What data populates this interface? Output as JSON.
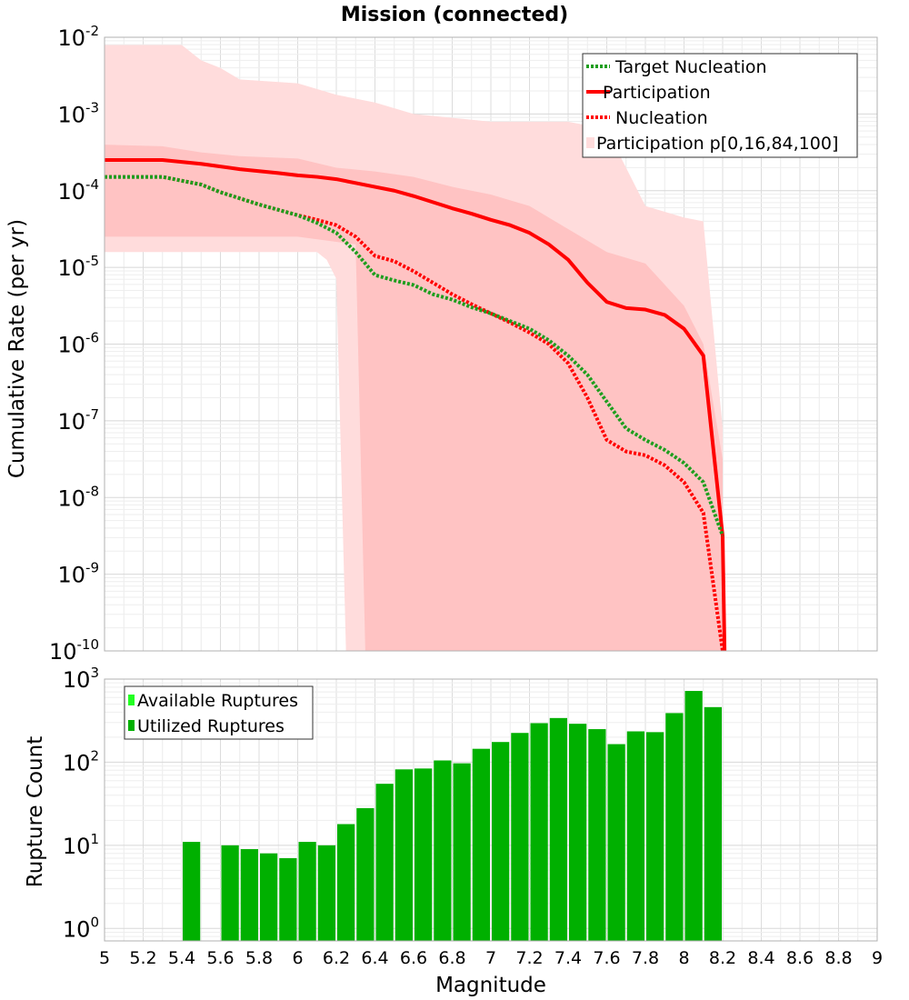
{
  "title": "Mission (connected)",
  "colors": {
    "band_outer": "#ffdcdc",
    "band_inner": "#ffc3c3",
    "participation": "#ff0000",
    "nucleation": "#ff0000",
    "target": "#1e9e1e",
    "bar_utilized": "#00b000",
    "bar_available": "#22ff22",
    "grid": "#e4e4e4",
    "axis": "#b0b0b0"
  },
  "chart_data": [
    {
      "id": "rate",
      "type": "line",
      "xlabel": "",
      "ylabel": "Cumulative Rate (per yr)",
      "xlim": [
        5,
        9
      ],
      "ylim_exp": [
        -10,
        -2
      ],
      "yscale": "log",
      "y_ticks": [
        {
          "base": "10",
          "exp": "-2",
          "value": -2
        },
        {
          "base": "10",
          "exp": "-3",
          "value": -3
        },
        {
          "base": "10",
          "exp": "-4",
          "value": -4
        },
        {
          "base": "10",
          "exp": "-5",
          "value": -5
        },
        {
          "base": "10",
          "exp": "-6",
          "value": -6
        },
        {
          "base": "10",
          "exp": "-7",
          "value": -7
        },
        {
          "base": "10",
          "exp": "-8",
          "value": -8
        },
        {
          "base": "10",
          "exp": "-9",
          "value": -9
        },
        {
          "base": "10",
          "exp": "-10",
          "value": -10
        }
      ],
      "legend": [
        {
          "label": "Target Nucleation",
          "style": "dotted",
          "color_key": "target"
        },
        {
          "label": "Participation",
          "style": "solid",
          "color_key": "participation"
        },
        {
          "label": "Nucleation",
          "style": "dotted",
          "color_key": "nucleation"
        },
        {
          "label": "Participation p[0,16,84,100]",
          "style": "patch",
          "color_key": "band_outer"
        }
      ],
      "legend_position": "top-right",
      "bands": [
        {
          "name": "p0-p100",
          "color_key": "band_outer",
          "upper": [
            [
              5.0,
              -2.1
            ],
            [
              5.4,
              -2.1
            ],
            [
              5.5,
              -2.3
            ],
            [
              5.6,
              -2.4
            ],
            [
              5.7,
              -2.55
            ],
            [
              6.0,
              -2.6
            ],
            [
              6.2,
              -2.75
            ],
            [
              6.4,
              -2.85
            ],
            [
              6.6,
              -3.0
            ],
            [
              6.8,
              -3.05
            ],
            [
              7.0,
              -3.1
            ],
            [
              7.2,
              -3.1
            ],
            [
              7.4,
              -3.1
            ],
            [
              7.6,
              -3.2
            ],
            [
              7.7,
              -3.7
            ],
            [
              7.8,
              -4.2
            ],
            [
              8.0,
              -4.35
            ],
            [
              8.1,
              -4.4
            ],
            [
              8.2,
              -7.1
            ],
            [
              8.2,
              -10
            ]
          ],
          "lower": [
            [
              5.0,
              -4.8
            ],
            [
              6.1,
              -4.8
            ],
            [
              6.15,
              -4.9
            ],
            [
              6.2,
              -5.15
            ],
            [
              6.25,
              -10
            ]
          ]
        },
        {
          "name": "p16-p84",
          "color_key": "band_inner",
          "upper": [
            [
              5.0,
              -3.4
            ],
            [
              5.3,
              -3.42
            ],
            [
              5.5,
              -3.5
            ],
            [
              5.7,
              -3.55
            ],
            [
              6.0,
              -3.58
            ],
            [
              6.2,
              -3.7
            ],
            [
              6.4,
              -3.75
            ],
            [
              6.6,
              -3.82
            ],
            [
              6.8,
              -3.95
            ],
            [
              7.0,
              -4.05
            ],
            [
              7.2,
              -4.2
            ],
            [
              7.4,
              -4.5
            ],
            [
              7.6,
              -4.8
            ],
            [
              7.8,
              -4.95
            ],
            [
              8.0,
              -5.5
            ],
            [
              8.1,
              -6.0
            ],
            [
              8.2,
              -7.5
            ],
            [
              8.2,
              -10
            ]
          ],
          "lower": [
            [
              5.0,
              -4.6
            ],
            [
              6.0,
              -4.6
            ],
            [
              6.3,
              -4.7
            ],
            [
              6.35,
              -10
            ]
          ]
        }
      ],
      "series": [
        {
          "name": "Participation",
          "color_key": "participation",
          "style": "solid",
          "points": [
            [
              5.0,
              -3.6
            ],
            [
              5.3,
              -3.6
            ],
            [
              5.5,
              -3.65
            ],
            [
              5.7,
              -3.72
            ],
            [
              5.9,
              -3.77
            ],
            [
              6.0,
              -3.8
            ],
            [
              6.1,
              -3.82
            ],
            [
              6.2,
              -3.85
            ],
            [
              6.3,
              -3.9
            ],
            [
              6.4,
              -3.95
            ],
            [
              6.5,
              -4.0
            ],
            [
              6.6,
              -4.07
            ],
            [
              6.7,
              -4.15
            ],
            [
              6.8,
              -4.23
            ],
            [
              6.9,
              -4.3
            ],
            [
              7.0,
              -4.38
            ],
            [
              7.1,
              -4.45
            ],
            [
              7.2,
              -4.55
            ],
            [
              7.3,
              -4.7
            ],
            [
              7.4,
              -4.9
            ],
            [
              7.5,
              -5.2
            ],
            [
              7.6,
              -5.45
            ],
            [
              7.7,
              -5.53
            ],
            [
              7.8,
              -5.55
            ],
            [
              7.9,
              -5.62
            ],
            [
              8.0,
              -5.8
            ],
            [
              8.1,
              -6.15
            ],
            [
              8.2,
              -8.5
            ],
            [
              8.21,
              -10
            ]
          ]
        },
        {
          "name": "Nucleation",
          "color_key": "nucleation",
          "style": "dotted",
          "points": [
            [
              5.0,
              -3.82
            ],
            [
              5.3,
              -3.82
            ],
            [
              5.4,
              -3.87
            ],
            [
              5.5,
              -3.92
            ],
            [
              5.6,
              -4.02
            ],
            [
              5.7,
              -4.1
            ],
            [
              5.8,
              -4.18
            ],
            [
              5.9,
              -4.25
            ],
            [
              6.0,
              -4.32
            ],
            [
              6.1,
              -4.38
            ],
            [
              6.2,
              -4.45
            ],
            [
              6.3,
              -4.6
            ],
            [
              6.4,
              -4.85
            ],
            [
              6.5,
              -4.92
            ],
            [
              6.6,
              -5.05
            ],
            [
              6.7,
              -5.2
            ],
            [
              6.8,
              -5.35
            ],
            [
              6.9,
              -5.48
            ],
            [
              7.0,
              -5.6
            ],
            [
              7.1,
              -5.72
            ],
            [
              7.2,
              -5.85
            ],
            [
              7.3,
              -6.0
            ],
            [
              7.4,
              -6.25
            ],
            [
              7.5,
              -6.7
            ],
            [
              7.6,
              -7.25
            ],
            [
              7.7,
              -7.4
            ],
            [
              7.8,
              -7.45
            ],
            [
              7.9,
              -7.58
            ],
            [
              8.0,
              -7.8
            ],
            [
              8.1,
              -8.2
            ],
            [
              8.2,
              -10
            ]
          ]
        },
        {
          "name": "Target Nucleation",
          "color_key": "target",
          "style": "dotted",
          "points": [
            [
              5.0,
              -3.82
            ],
            [
              5.3,
              -3.82
            ],
            [
              5.4,
              -3.87
            ],
            [
              5.5,
              -3.92
            ],
            [
              5.6,
              -4.02
            ],
            [
              5.7,
              -4.1
            ],
            [
              5.8,
              -4.18
            ],
            [
              5.9,
              -4.25
            ],
            [
              6.0,
              -4.32
            ],
            [
              6.1,
              -4.42
            ],
            [
              6.2,
              -4.55
            ],
            [
              6.3,
              -4.8
            ],
            [
              6.4,
              -5.1
            ],
            [
              6.5,
              -5.17
            ],
            [
              6.6,
              -5.23
            ],
            [
              6.7,
              -5.35
            ],
            [
              6.8,
              -5.42
            ],
            [
              6.9,
              -5.52
            ],
            [
              7.0,
              -5.6
            ],
            [
              7.1,
              -5.7
            ],
            [
              7.2,
              -5.8
            ],
            [
              7.3,
              -5.95
            ],
            [
              7.4,
              -6.15
            ],
            [
              7.5,
              -6.4
            ],
            [
              7.6,
              -6.75
            ],
            [
              7.7,
              -7.1
            ],
            [
              7.8,
              -7.25
            ],
            [
              7.9,
              -7.38
            ],
            [
              8.0,
              -7.55
            ],
            [
              8.1,
              -7.8
            ],
            [
              8.2,
              -8.5
            ]
          ]
        }
      ]
    },
    {
      "id": "count",
      "type": "bar",
      "xlabel": "Magnitude",
      "ylabel": "Rupture Count",
      "xlim": [
        5,
        9
      ],
      "ylim_exp": [
        -0.15,
        3
      ],
      "yscale": "log",
      "x_ticks": [
        "5",
        "5.2",
        "5.4",
        "5.6",
        "5.8",
        "6",
        "6.2",
        "6.4",
        "6.6",
        "6.8",
        "7",
        "7.2",
        "7.4",
        "7.6",
        "7.8",
        "8",
        "8.2",
        "8.4",
        "8.6",
        "8.8",
        "9"
      ],
      "y_ticks": [
        {
          "base": "10",
          "exp": "3",
          "value": 3
        },
        {
          "base": "10",
          "exp": "2",
          "value": 2
        },
        {
          "base": "10",
          "exp": "1",
          "value": 1
        },
        {
          "base": "10",
          "exp": "0",
          "value": 0
        }
      ],
      "legend": [
        {
          "label": "Available Ruptures",
          "color_key": "bar_available"
        },
        {
          "label": "Utilized Ruptures",
          "color_key": "bar_utilized"
        }
      ],
      "legend_position": "top-left",
      "bin_width": 0.1,
      "bins": [
        5.45,
        5.65,
        5.75,
        5.85,
        5.95,
        6.05,
        6.15,
        6.25,
        6.35,
        6.45,
        6.55,
        6.65,
        6.75,
        6.85,
        6.95,
        7.05,
        7.15,
        7.25,
        7.35,
        7.45,
        7.55,
        7.65,
        7.75,
        7.85,
        7.95,
        8.05,
        8.15
      ],
      "values": [
        11,
        10,
        9,
        8,
        7,
        11,
        10,
        18,
        28,
        55,
        82,
        84,
        105,
        97,
        145,
        175,
        225,
        295,
        340,
        290,
        250,
        165,
        235,
        230,
        390,
        720,
        460
      ]
    }
  ]
}
